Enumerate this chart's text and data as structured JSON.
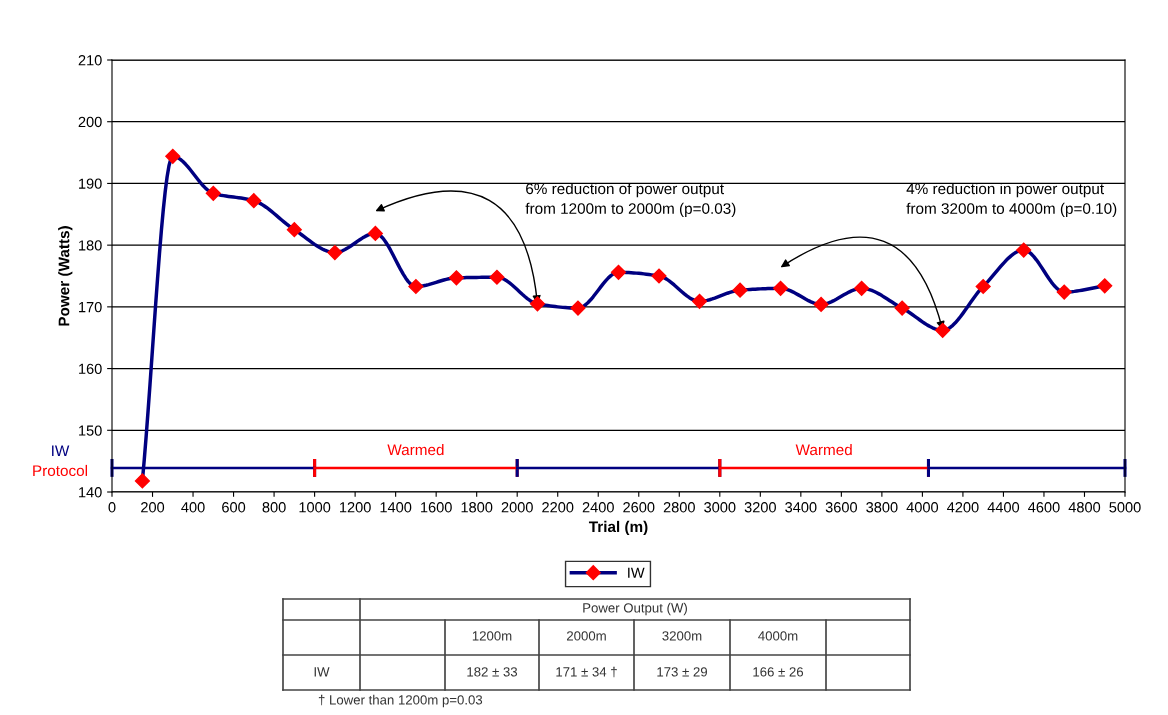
{
  "chart_data": {
    "type": "line",
    "xlabel": "Trial (m)",
    "ylabel": "Power (Watts)",
    "x": [
      150,
      300,
      500,
      700,
      900,
      1100,
      1300,
      1500,
      1700,
      1900,
      2100,
      2300,
      2500,
      2700,
      2900,
      3100,
      3300,
      3500,
      3700,
      3900,
      4100,
      4300,
      4500,
      4700,
      4900
    ],
    "series": [
      {
        "name": "IW",
        "color": "#000080",
        "marker": "diamond",
        "values": [
          141.8,
          194.4,
          188.4,
          187.2,
          182.5,
          178.8,
          181.9,
          173.3,
          174.7,
          174.8,
          170.5,
          169.8,
          175.6,
          175.0,
          170.9,
          172.7,
          173.0,
          170.4,
          173.0,
          169.8,
          166.2,
          173.3,
          179.2,
          172.4,
          173.4
        ]
      },
      {
        "type": "step",
        "color": "#000080",
        "x": [
          0,
          1000
        ],
        "values": [
          143.9,
          143.9
        ]
      },
      {
        "type": "step",
        "color": "#ff0000",
        "x": [
          1000,
          2000
        ],
        "values": [
          143.9,
          143.9
        ]
      },
      {
        "type": "step",
        "color": "#000080",
        "x": [
          2000,
          3000
        ],
        "values": [
          143.9,
          143.9
        ]
      },
      {
        "type": "step",
        "color": "#ff0000",
        "x": [
          3000,
          4030
        ],
        "values": [
          143.9,
          143.9
        ]
      },
      {
        "type": "step",
        "color": "#000080",
        "x": [
          4030,
          5000
        ],
        "values": [
          143.9,
          143.9
        ]
      }
    ],
    "line_style": "solid",
    "xlim": [
      0,
      5000
    ],
    "xticks": [
      0,
      200,
      400,
      600,
      800,
      1000,
      1200,
      1400,
      1600,
      1800,
      2000,
      2200,
      2400,
      2600,
      2800,
      3000,
      3200,
      3400,
      3600,
      3800,
      4000,
      4200,
      4400,
      4600,
      4800,
      5000
    ],
    "ylim": [
      140,
      210
    ],
    "yticks": [
      140,
      150,
      160,
      170,
      180,
      190,
      200,
      210
    ],
    "grid": "y",
    "legend": "bottom",
    "annotations": [
      {
        "text": "Warmed",
        "x": 1500,
        "y": 143.9
      },
      {
        "text": "Warmed",
        "x": 3515,
        "y": 143.9
      },
      "6% reduction of power output\nfrom 1200m to 2000m (p=0.03)",
      "4% reduction in power output\nfrom 3200m to 4000m (p=0.10)",
      "IW",
      "Protocol",
      "Power Output (W)",
      "1200m",
      "2000m",
      "3200m",
      "4000m",
      "IW",
      "182 ± 33",
      "171 ± 34 †",
      "173 ± 29",
      "166 ± 26",
      "† Lower than 1200m p=0.03"
    ]
  }
}
